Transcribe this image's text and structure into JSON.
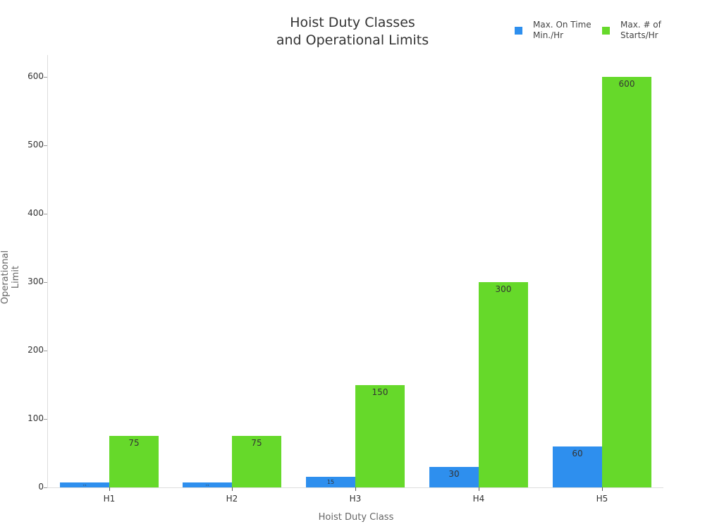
{
  "chart_data": {
    "type": "bar",
    "title": "Hoist Duty Classes and Operational Limits",
    "title_lines": [
      "Hoist Duty Classes",
      "and Operational Limits"
    ],
    "xlabel": "Hoist Duty Class",
    "ylabel": "Operational Limit",
    "categories": [
      "H1",
      "H2",
      "H3",
      "H4",
      "H5"
    ],
    "series": [
      {
        "name": "Max. On Time Min./Hr",
        "legend_lines": [
          "Max. On Time",
          "Min./Hr"
        ],
        "color": "#2e8fee",
        "values": [
          7.5,
          7.5,
          15,
          30,
          60
        ],
        "labels": [
          "7.5",
          "7.5",
          "15",
          "30",
          "60"
        ]
      },
      {
        "name": "Max. # of Starts/Hr",
        "legend_lines": [
          "Max. # of",
          "Starts/Hr"
        ],
        "color": "#66d92a",
        "values": [
          75,
          75,
          150,
          300,
          600
        ],
        "labels": [
          "75",
          "75",
          "150",
          "300",
          "600"
        ]
      }
    ],
    "yticks": [
      0,
      100,
      200,
      300,
      400,
      500,
      600
    ],
    "ylim": [
      0,
      630
    ],
    "grid": false,
    "legend_position": "top-right"
  }
}
